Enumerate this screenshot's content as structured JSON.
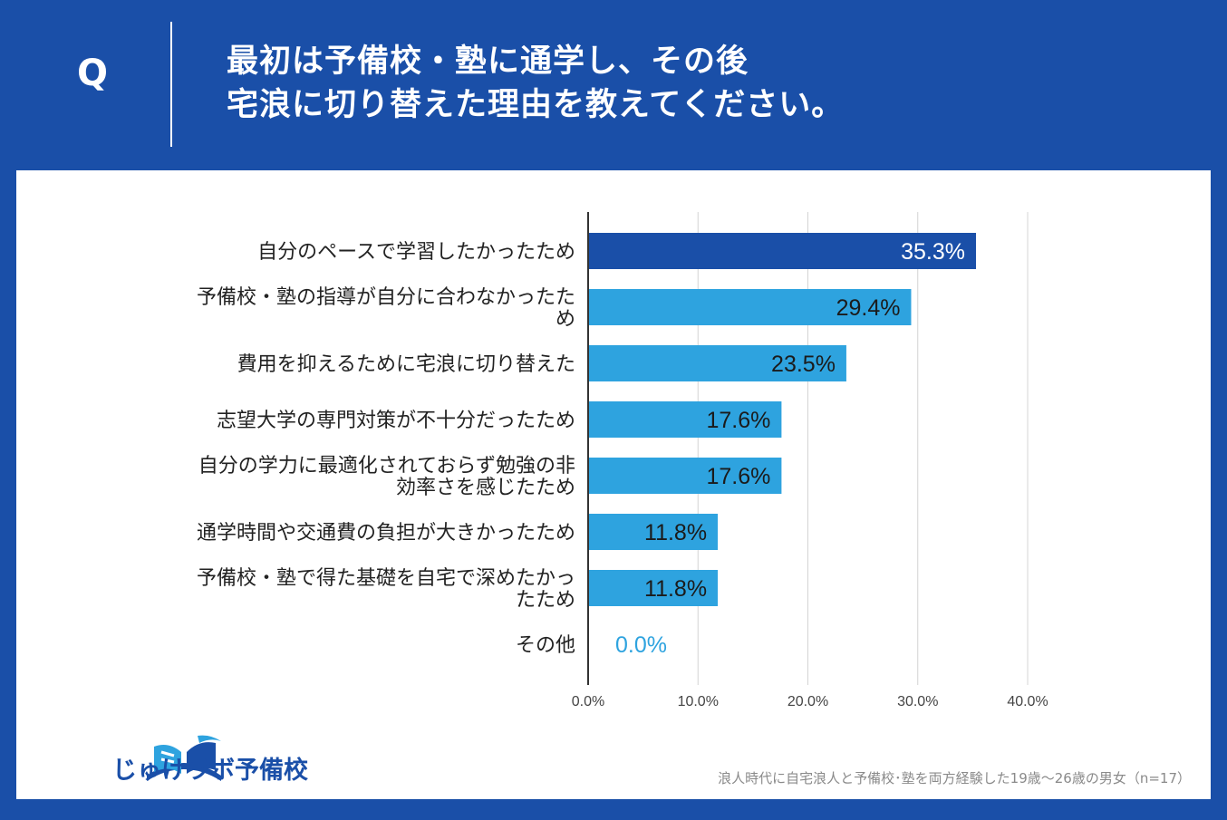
{
  "header": {
    "q_label": "Q",
    "question_line1": "最初は予備校・塾に通学し、その後",
    "question_line2": "宅浪に切り替えた理由を教えてください。"
  },
  "chart_data": {
    "type": "bar",
    "orientation": "horizontal",
    "categories": [
      [
        "自分のペースで学習したかったため"
      ],
      [
        "予備校・塾の指導が自分に合わなかったた",
        "め"
      ],
      [
        "費用を抑えるために宅浪に切り替えた"
      ],
      [
        "志望大学の専門対策が不十分だったため"
      ],
      [
        "自分の学力に最適化されておらず勉強の非",
        "効率さを感じたため"
      ],
      [
        "通学時間や交通費の負担が大きかったため"
      ],
      [
        "予備校・塾で得た基礎を自宅で深めたかっ",
        "たため"
      ],
      [
        "その他"
      ]
    ],
    "values": [
      35.3,
      29.4,
      23.5,
      17.6,
      17.6,
      11.8,
      11.8,
      0.0
    ],
    "value_labels": [
      "35.3%",
      "29.4%",
      "23.5%",
      "17.6%",
      "17.6%",
      "11.8%",
      "11.8%",
      "0.0%"
    ],
    "xlim": [
      0,
      40
    ],
    "xticks": [
      0,
      10,
      20,
      30,
      40
    ],
    "xtick_labels": [
      "0.0%",
      "10.0%",
      "20.0%",
      "30.0%",
      "40.0%"
    ],
    "colors": {
      "highlight": "#1a4fa8",
      "bar": "#2ea3df",
      "grid": "#d4d4d4",
      "axis": "#333333",
      "zero_label": "#2ea3df"
    }
  },
  "brand": {
    "name": "じゅけラボ予備校"
  },
  "footnote": "浪人時代に自宅浪人と予備校･塾を両方経験した19歳〜26歳の男女（n=17）"
}
